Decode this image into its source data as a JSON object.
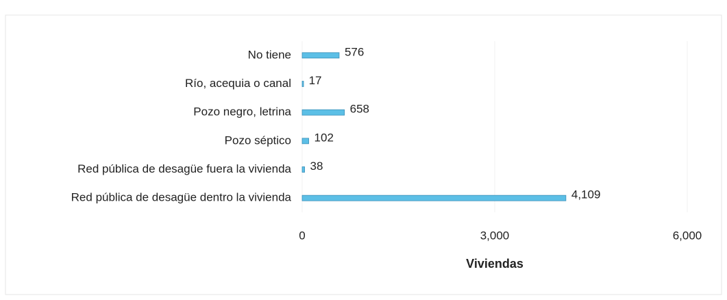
{
  "chart_data": {
    "type": "bar",
    "orientation": "horizontal",
    "categories": [
      "No tiene",
      "Río, acequia o canal",
      "Pozo negro, letrina",
      "Pozo séptico",
      "Red pública de desagüe fuera la vivienda",
      "Red pública de desagüe dentro la vivienda"
    ],
    "values": [
      576,
      17,
      658,
      102,
      38,
      4109
    ],
    "value_labels": [
      "576",
      "17",
      "658",
      "102",
      "38",
      "4,109"
    ],
    "color": "#5cbfe6",
    "xlim": [
      0,
      6000
    ],
    "xticks": [
      0,
      {
        "value": 3000,
        "label": "3,000"
      },
      {
        "value": 6000,
        "label": "6,000"
      }
    ],
    "xlabel": "Viviendas",
    "grid": true
  }
}
